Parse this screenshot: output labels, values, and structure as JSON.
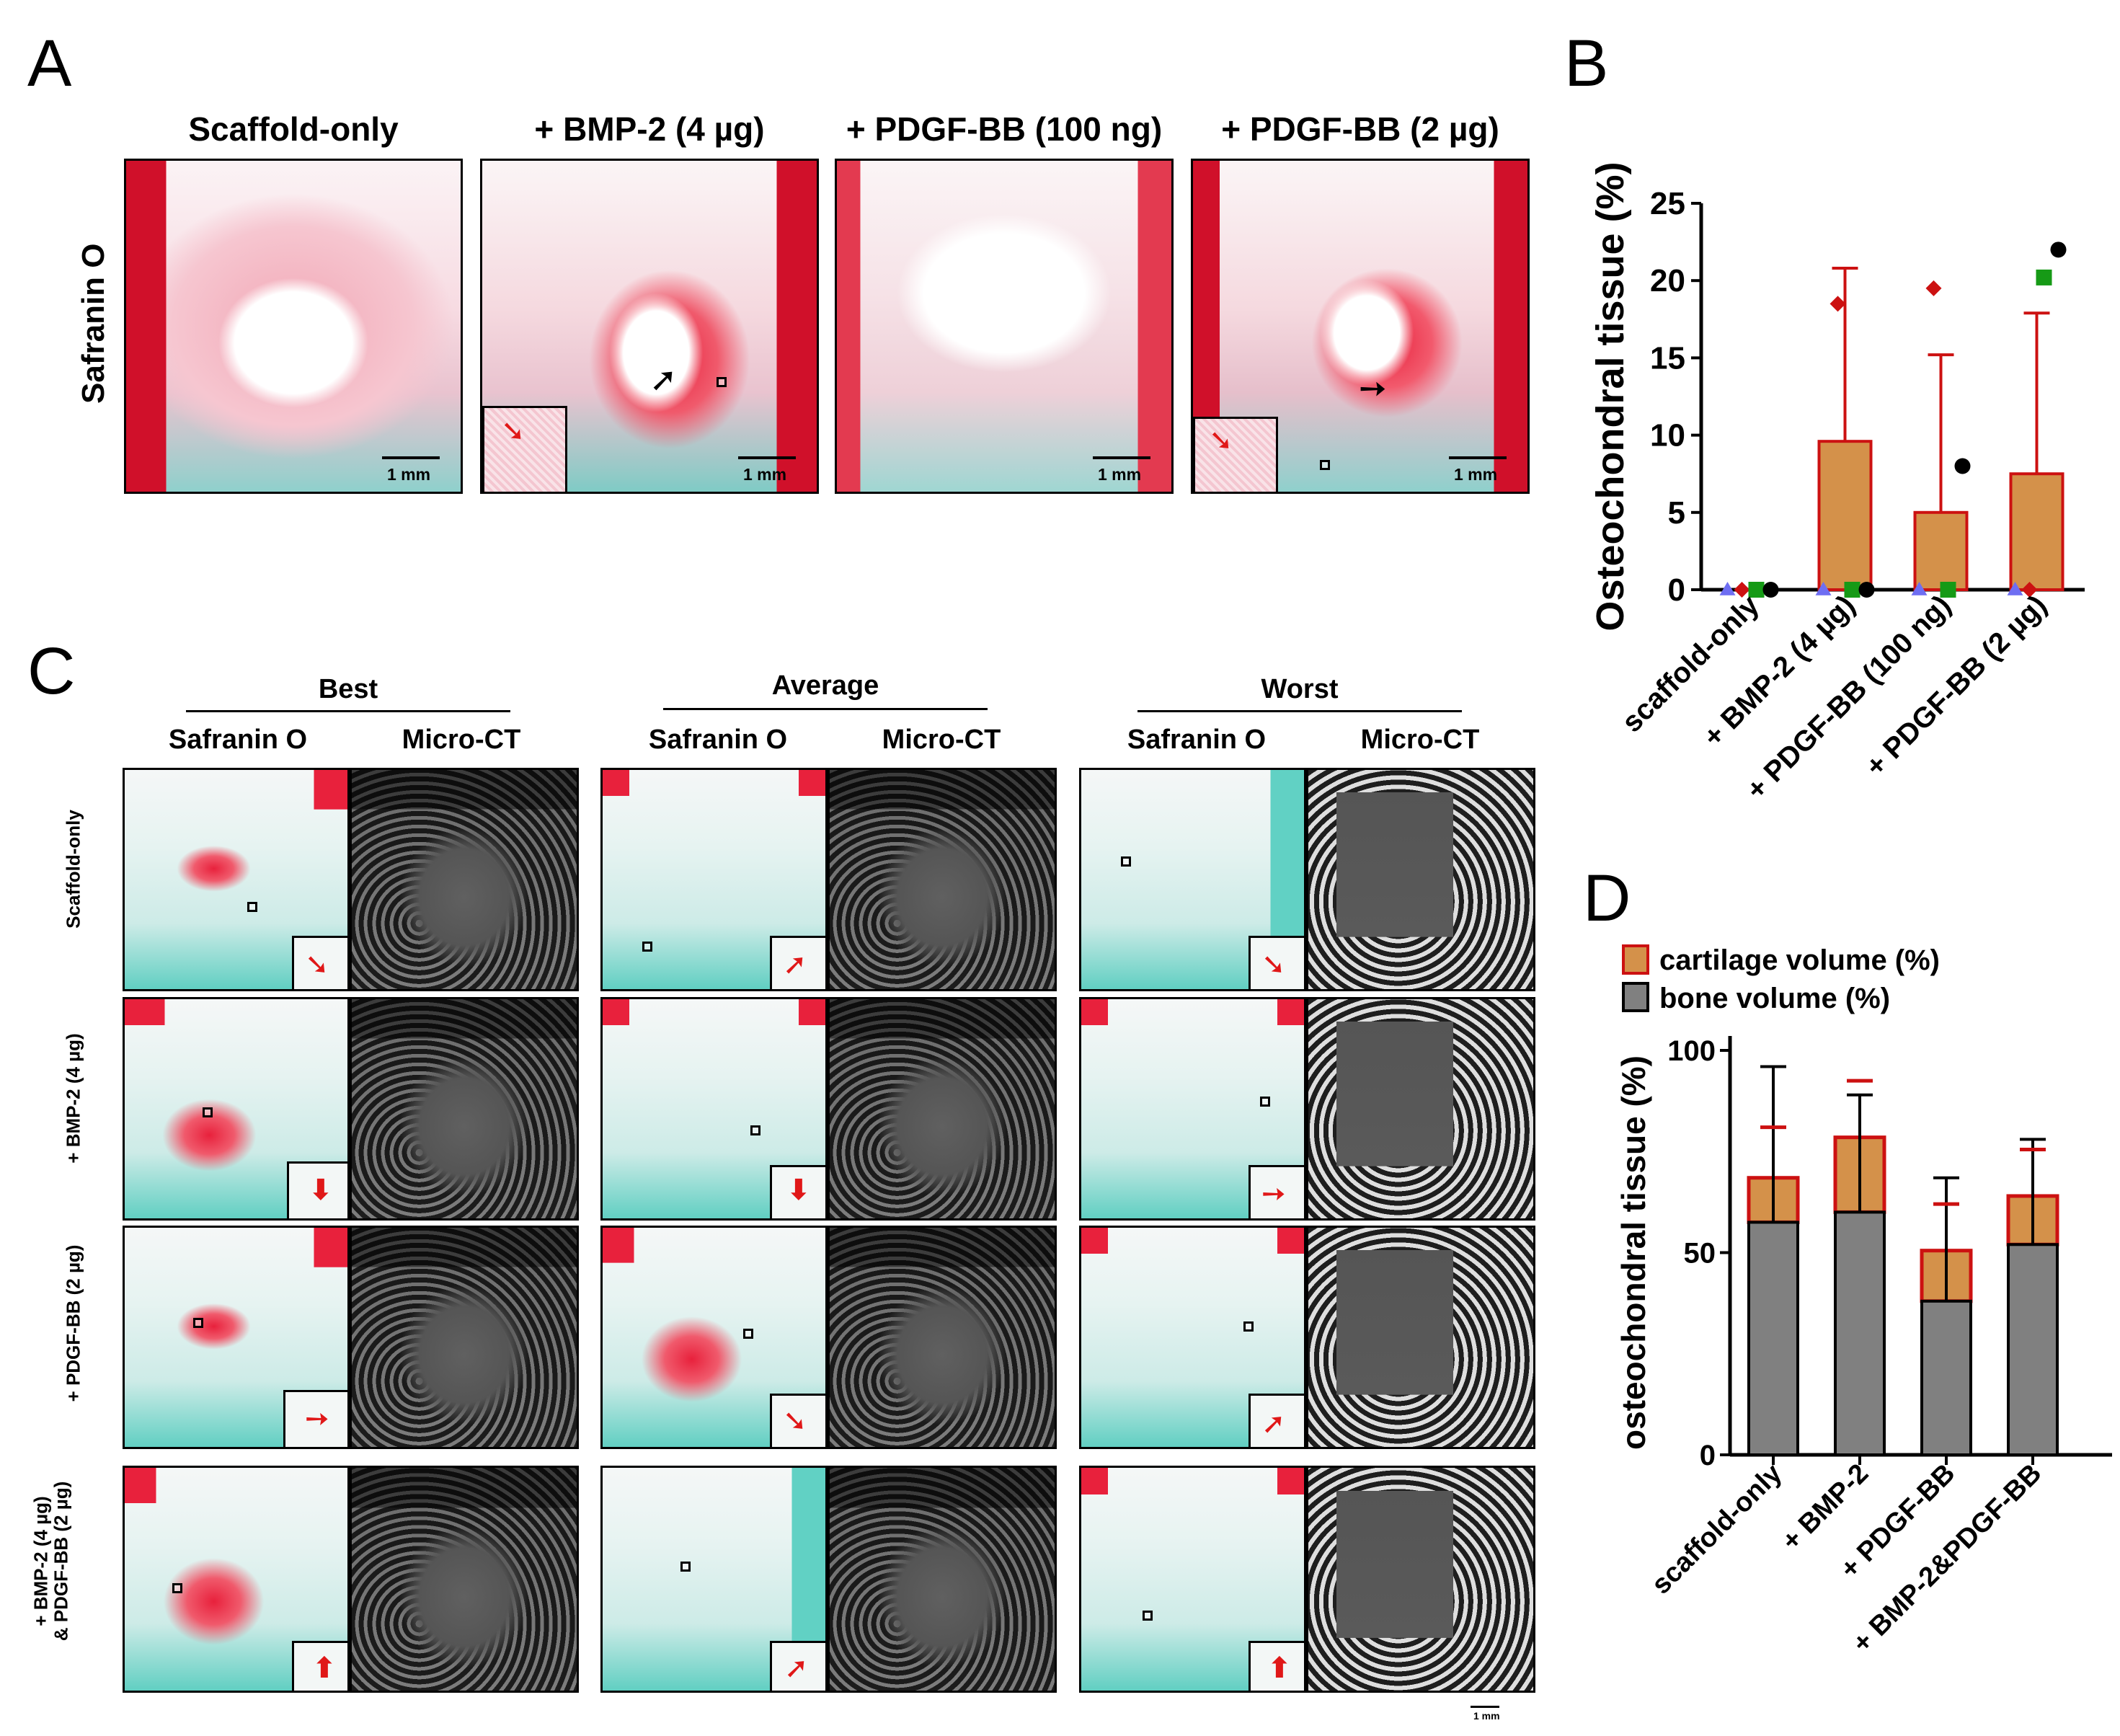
{
  "panel_letters": {
    "A": "A",
    "B": "B",
    "C": "C",
    "D": "D"
  },
  "panelA": {
    "row_label": "Safranin O",
    "columns": [
      "Scaffold-only",
      "+ BMP-2 (4 µg)",
      "+ PDGF-BB (100 ng)",
      "+ PDGF-BB (2 µg)"
    ],
    "scale_label": "1 mm"
  },
  "panelC": {
    "groups": [
      "Best",
      "Average",
      "Worst"
    ],
    "subcolumns": [
      "Safranin O",
      "Micro-CT"
    ],
    "rows": [
      "Scaffold-only",
      "+ BMP-2 (4 µg)",
      "+ PDGF-BB (2 µg)",
      "+ BMP-2 (4 µg)",
      "& PDGF-BB (2 µg)"
    ],
    "scale_label": "1 mm"
  },
  "chart_data": [
    {
      "panel": "B",
      "type": "bar",
      "ylabel": "Osteochondral tissue (%)",
      "ylim": [
        0,
        25
      ],
      "yticks": [
        0,
        5,
        10,
        15,
        20,
        25
      ],
      "categories": [
        "scaffold-only",
        "+ BMP-2 (4 µg)",
        "+ PDGF-BB (100 ng)",
        "+ PDGF-BB (2 µg)"
      ],
      "values": [
        0,
        9.6,
        5.0,
        7.5
      ],
      "error_upper": [
        0,
        20.8,
        15.2,
        17.9
      ],
      "bar_color": "#d4914a",
      "error_color": "#cc1111",
      "points": [
        {
          "values": [
            0,
            0,
            0,
            0
          ],
          "marker": "triangle",
          "color": "#6e6ef2"
        },
        {
          "values": [
            0,
            18.5,
            19.5,
            0
          ],
          "marker": "diamond",
          "color": "#cc1111"
        },
        {
          "values": [
            0,
            0,
            0,
            20.2
          ],
          "marker": "square",
          "color": "#169a16"
        },
        {
          "values": [
            0,
            0,
            8.0,
            22.0
          ],
          "marker": "circle",
          "color": "#000000"
        }
      ]
    },
    {
      "panel": "D",
      "type": "bar",
      "stacked": true,
      "ylabel": "osteochondral tissue (%)",
      "ylim": [
        0,
        100
      ],
      "yticks": [
        0,
        50,
        100
      ],
      "categories": [
        "scaffold-only",
        "+ BMP-2",
        "+ PDGF-BB",
        "+ BMP-2&PDGF-BB"
      ],
      "series": [
        {
          "name": "bone volume (%)",
          "values": [
            57.5,
            60.0,
            38.0,
            52.0
          ],
          "error_upper": [
            96.0,
            89.0,
            68.5,
            78.0
          ],
          "color": "#808080",
          "error_color": "#000000"
        },
        {
          "name": "cartilage volume (%)",
          "values": [
            11.0,
            18.5,
            12.5,
            12.0
          ],
          "error_upper": [
            81.0,
            92.5,
            62.0,
            75.5
          ],
          "color": "#d4914a",
          "edge_color": "#cc1111",
          "error_color": "#cc1111"
        }
      ],
      "legend": [
        "cartilage volume (%)",
        "bone volume (%)"
      ]
    }
  ]
}
